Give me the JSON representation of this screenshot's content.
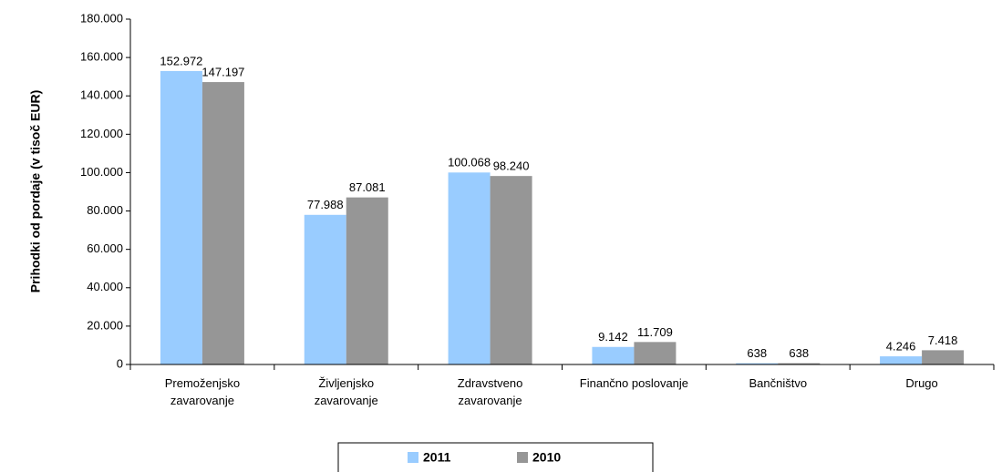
{
  "chart_data": {
    "type": "bar",
    "y_label": "Prihodki od pordaje (v tisoč EUR)",
    "categories": [
      "Premoženjsko\nzavarovanje",
      "Življenjsko\nzavarovanje",
      "Zdravstveno\nzavarovanje",
      "Finančno poslovanje",
      "Bančništvo",
      "Drugo"
    ],
    "series": [
      {
        "name": "2011",
        "color": "#99ccff",
        "values": [
          152972,
          77988,
          100068,
          9142,
          638,
          4246
        ],
        "value_labels": [
          "152.972",
          "77.988",
          "100.068",
          "9.142",
          "638",
          "4.246"
        ]
      },
      {
        "name": "2010",
        "color": "#969696",
        "values": [
          147197,
          87081,
          98240,
          11709,
          638,
          7418
        ],
        "value_labels": [
          "147.197",
          "87.081",
          "98.240",
          "11.709",
          "638",
          "7.418"
        ]
      }
    ],
    "ylim": [
      0,
      180000
    ],
    "yticks": [
      0,
      {
        "value": 20000,
        "label": "20.000"
      },
      {
        "value": 40000,
        "label": "40.000"
      },
      {
        "value": 60000,
        "label": "60.000"
      },
      {
        "value": 80000,
        "label": "80.000"
      },
      {
        "value": 100000,
        "label": "100.000"
      },
      {
        "value": 120000,
        "label": "120.000"
      },
      {
        "value": 140000,
        "label": "140.000"
      },
      {
        "value": 160000,
        "label": "160.000"
      },
      {
        "value": 180000,
        "label": "180.000"
      }
    ],
    "grid": false,
    "legend": "bottom"
  }
}
